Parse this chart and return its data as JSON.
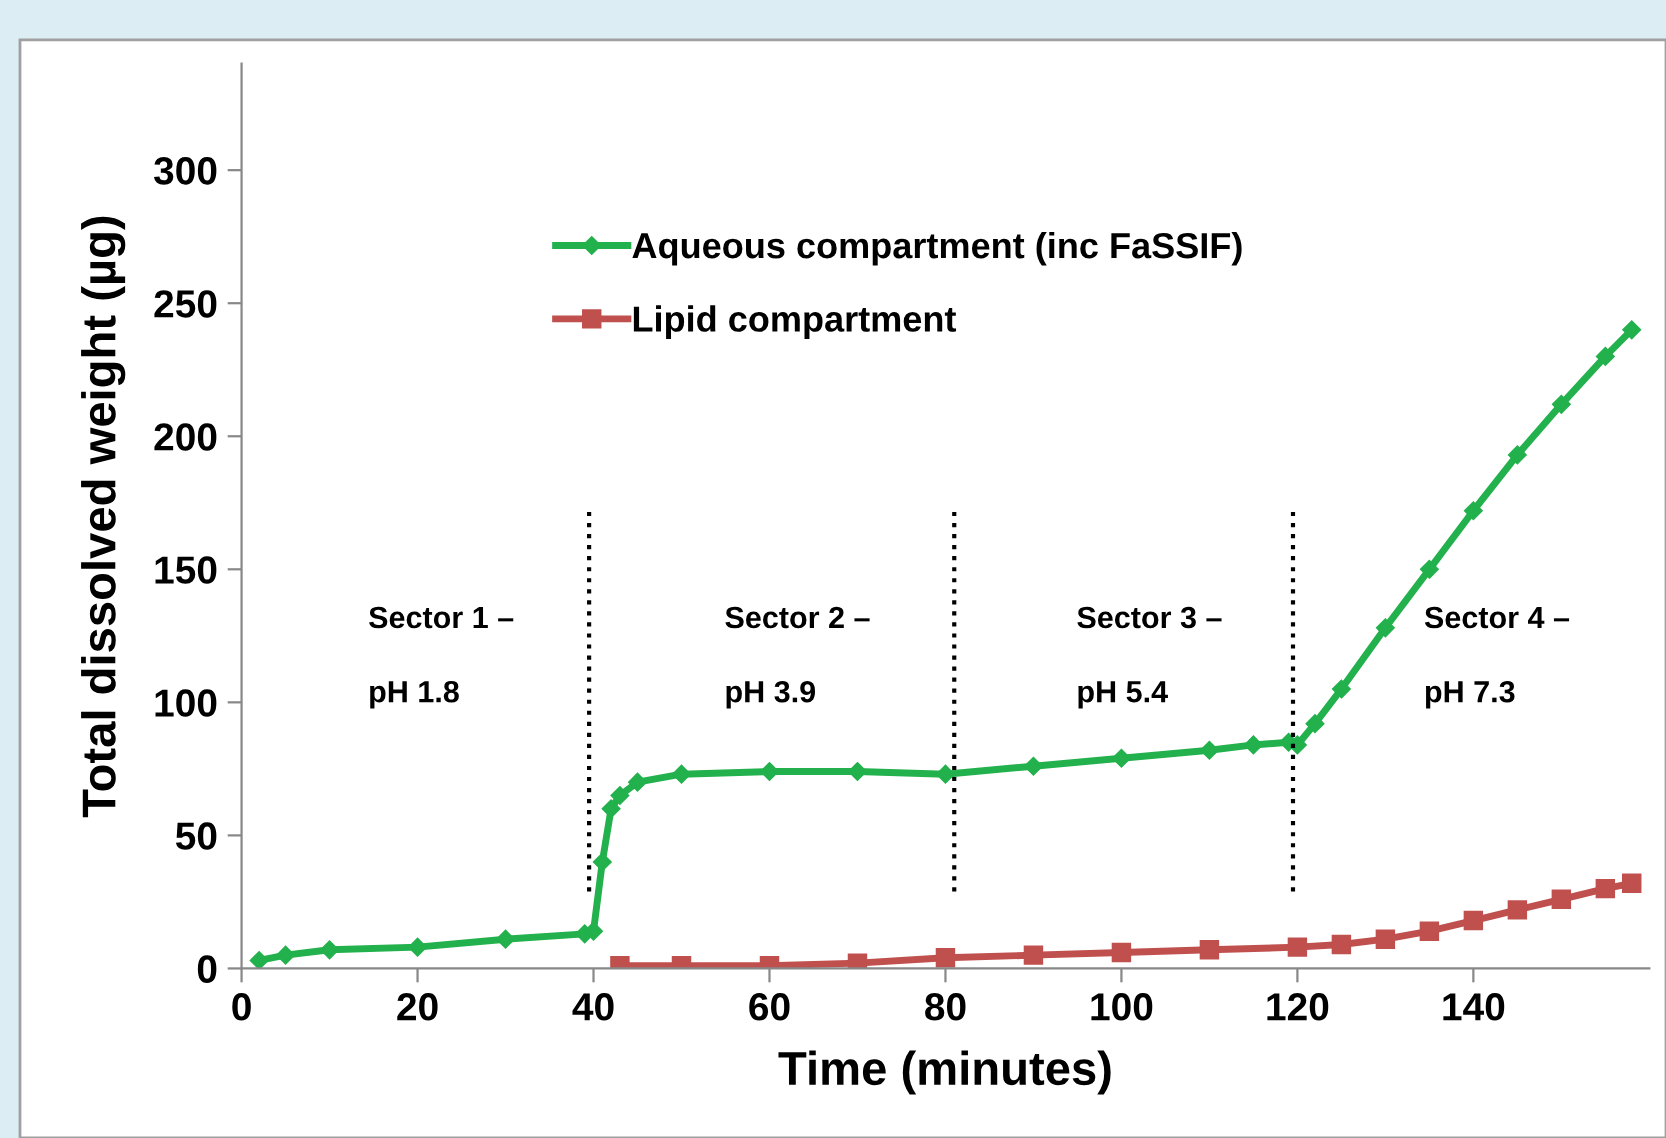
{
  "chart_data": {
    "type": "line",
    "xlabel": "Time (minutes)",
    "ylabel": "Total dissolved weight (µg)",
    "xlim": [
      0,
      160
    ],
    "xticks": [
      0,
      20,
      40,
      60,
      80,
      100,
      120,
      140
    ],
    "ylim": [
      0,
      340
    ],
    "yticks": [
      0,
      50,
      100,
      150,
      200,
      250,
      300
    ],
    "grid": false,
    "legend": "top",
    "line_style": "solid",
    "series": [
      {
        "name": "Aqueous compartment (inc FaSSIF)",
        "color": "#22b14c",
        "marker": "diamond",
        "x": [
          2,
          5,
          10,
          20,
          30,
          39,
          40,
          41,
          42,
          43,
          45,
          50,
          60,
          70,
          80,
          90,
          100,
          110,
          115,
          119,
          120,
          122,
          125,
          130,
          135,
          140,
          145,
          150,
          155,
          158
        ],
        "values": [
          3,
          5,
          7,
          8,
          11,
          13,
          14,
          40,
          60,
          65,
          70,
          73,
          74,
          74,
          73,
          76,
          79,
          82,
          84,
          85,
          84,
          92,
          105,
          128,
          150,
          172,
          193,
          212,
          230,
          240
        ]
      },
      {
        "name": "Lipid compartment",
        "color": "#c0504d",
        "marker": "square",
        "x": [
          43,
          50,
          60,
          70,
          80,
          90,
          100,
          110,
          120,
          125,
          130,
          135,
          140,
          145,
          150,
          155,
          158
        ],
        "values": [
          1,
          1,
          1,
          2,
          4,
          5,
          6,
          7,
          8,
          9,
          11,
          14,
          18,
          22,
          26,
          30,
          32
        ]
      }
    ],
    "ref_lines": [
      {
        "axis": "x",
        "value": 39.5,
        "line_style": "dotted",
        "color": "#000000"
      },
      {
        "axis": "x",
        "value": 81,
        "line_style": "dotted",
        "color": "#000000"
      },
      {
        "axis": "x",
        "value": 119.5,
        "line_style": "dotted",
        "color": "#000000"
      }
    ],
    "annotations": [
      "Sector 1 –",
      "pH 1.8",
      "Sector 2 –",
      "pH 3.9",
      "Sector 3 –",
      "pH 5.4",
      "Sector 4 –",
      "pH 7.3"
    ]
  }
}
